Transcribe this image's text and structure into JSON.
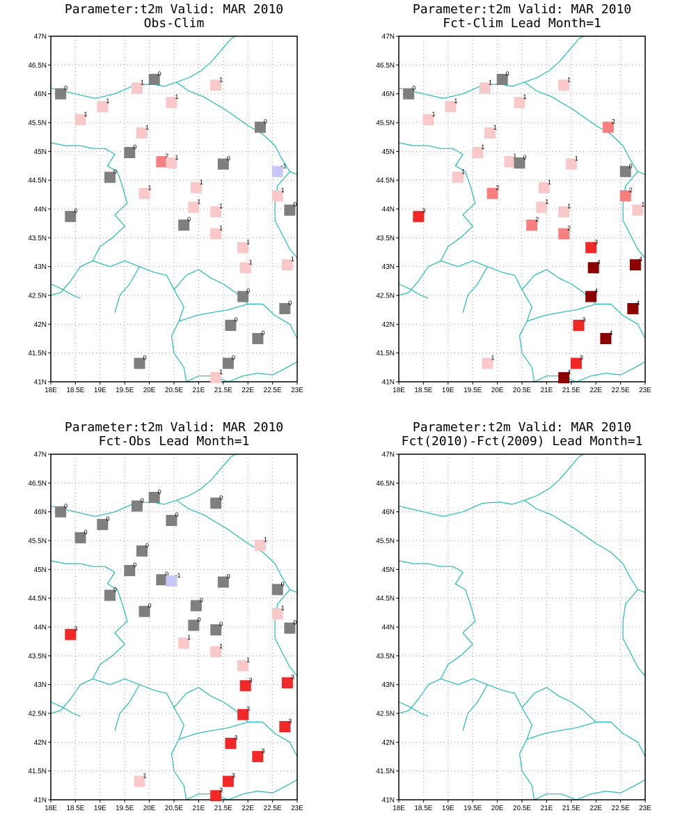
{
  "lon_labels": [
    "18E",
    "18.5E",
    "19E",
    "19.5E",
    "20E",
    "20.5E",
    "21E",
    "21.5E",
    "22E",
    "22.5E",
    "23E"
  ],
  "lat_labels": [
    "41N",
    "41.5N",
    "42N",
    "42.5N",
    "43N",
    "43.5N",
    "44N",
    "44.5N",
    "45N",
    "45.5N",
    "46N",
    "46.5N",
    "47N"
  ],
  "colors": {
    "-1": "#c8c8f8",
    "0": "#7f7f7f",
    "1": "#f9c9c9",
    "2": "#f68080",
    "3": "#f02828",
    "4": "#8c0000",
    "border": "#22bbbb",
    "grid": "#9a9a9a"
  },
  "panels": [
    {
      "title1": "Parameter:t2m Valid: MAR 2010",
      "title2": "Obs-Clim",
      "stations": [
        {
          "lon": 18.2,
          "lat": 46.0,
          "v": 0
        },
        {
          "lon": 20.1,
          "lat": 46.25,
          "v": 0
        },
        {
          "lon": 19.75,
          "lat": 46.1,
          "v": 1
        },
        {
          "lon": 21.35,
          "lat": 46.15,
          "v": 1
        },
        {
          "lon": 19.05,
          "lat": 45.78,
          "v": 1
        },
        {
          "lon": 20.45,
          "lat": 45.85,
          "v": 1
        },
        {
          "lon": 18.6,
          "lat": 45.55,
          "v": 1
        },
        {
          "lon": 19.85,
          "lat": 45.32,
          "v": 1
        },
        {
          "lon": 22.25,
          "lat": 45.42,
          "v": 0
        },
        {
          "lon": 19.6,
          "lat": 44.98,
          "v": 0
        },
        {
          "lon": 20.25,
          "lat": 44.82,
          "v": 2
        },
        {
          "lon": 20.45,
          "lat": 44.8,
          "v": 1
        },
        {
          "lon": 21.5,
          "lat": 44.78,
          "v": 0
        },
        {
          "lon": 22.6,
          "lat": 44.65,
          "v": -1
        },
        {
          "lon": 19.2,
          "lat": 44.55,
          "v": 0
        },
        {
          "lon": 19.9,
          "lat": 44.27,
          "v": 1
        },
        {
          "lon": 20.95,
          "lat": 44.37,
          "v": 1
        },
        {
          "lon": 22.6,
          "lat": 44.23,
          "v": 1
        },
        {
          "lon": 20.9,
          "lat": 44.03,
          "v": 1
        },
        {
          "lon": 21.35,
          "lat": 43.95,
          "v": 1
        },
        {
          "lon": 22.85,
          "lat": 43.98,
          "v": 0
        },
        {
          "lon": 18.4,
          "lat": 43.87,
          "v": 0
        },
        {
          "lon": 20.7,
          "lat": 43.72,
          "v": 0
        },
        {
          "lon": 21.35,
          "lat": 43.57,
          "v": 1
        },
        {
          "lon": 21.9,
          "lat": 43.33,
          "v": 1
        },
        {
          "lon": 21.95,
          "lat": 42.98,
          "v": 1
        },
        {
          "lon": 22.8,
          "lat": 43.03,
          "v": 1
        },
        {
          "lon": 21.9,
          "lat": 42.48,
          "v": 0
        },
        {
          "lon": 22.75,
          "lat": 42.27,
          "v": 0
        },
        {
          "lon": 21.65,
          "lat": 41.98,
          "v": 0
        },
        {
          "lon": 22.2,
          "lat": 41.75,
          "v": 0
        },
        {
          "lon": 19.8,
          "lat": 41.32,
          "v": 0
        },
        {
          "lon": 21.6,
          "lat": 41.32,
          "v": 0
        },
        {
          "lon": 21.35,
          "lat": 41.07,
          "v": 1
        }
      ]
    },
    {
      "title1": "Parameter:t2m Valid: MAR 2010",
      "title2": "Fct-Clim Lead Month=1",
      "stations": [
        {
          "lon": 18.2,
          "lat": 46.0,
          "v": 0
        },
        {
          "lon": 20.1,
          "lat": 46.25,
          "v": 0
        },
        {
          "lon": 19.75,
          "lat": 46.1,
          "v": 1
        },
        {
          "lon": 21.35,
          "lat": 46.15,
          "v": 1
        },
        {
          "lon": 19.05,
          "lat": 45.78,
          "v": 1
        },
        {
          "lon": 20.45,
          "lat": 45.85,
          "v": 1
        },
        {
          "lon": 18.6,
          "lat": 45.55,
          "v": 1
        },
        {
          "lon": 19.85,
          "lat": 45.32,
          "v": 1
        },
        {
          "lon": 22.25,
          "lat": 45.42,
          "v": 2
        },
        {
          "lon": 19.6,
          "lat": 44.98,
          "v": 1
        },
        {
          "lon": 20.25,
          "lat": 44.82,
          "v": 1
        },
        {
          "lon": 20.45,
          "lat": 44.8,
          "v": 0
        },
        {
          "lon": 21.5,
          "lat": 44.78,
          "v": 1
        },
        {
          "lon": 22.6,
          "lat": 44.65,
          "v": 0
        },
        {
          "lon": 19.2,
          "lat": 44.55,
          "v": 1
        },
        {
          "lon": 19.9,
          "lat": 44.27,
          "v": 2
        },
        {
          "lon": 20.95,
          "lat": 44.37,
          "v": 1
        },
        {
          "lon": 22.6,
          "lat": 44.23,
          "v": 2
        },
        {
          "lon": 20.9,
          "lat": 44.03,
          "v": 1
        },
        {
          "lon": 21.35,
          "lat": 43.95,
          "v": 1
        },
        {
          "lon": 22.85,
          "lat": 43.98,
          "v": 1
        },
        {
          "lon": 18.4,
          "lat": 43.87,
          "v": 3
        },
        {
          "lon": 20.7,
          "lat": 43.72,
          "v": 2
        },
        {
          "lon": 21.35,
          "lat": 43.57,
          "v": 2
        },
        {
          "lon": 21.9,
          "lat": 43.33,
          "v": 3
        },
        {
          "lon": 21.95,
          "lat": 42.98,
          "v": 4
        },
        {
          "lon": 22.8,
          "lat": 43.03,
          "v": 4
        },
        {
          "lon": 21.9,
          "lat": 42.48,
          "v": 4
        },
        {
          "lon": 22.75,
          "lat": 42.27,
          "v": 4
        },
        {
          "lon": 21.65,
          "lat": 41.98,
          "v": 3
        },
        {
          "lon": 22.2,
          "lat": 41.75,
          "v": 4
        },
        {
          "lon": 19.8,
          "lat": 41.32,
          "v": 1
        },
        {
          "lon": 21.6,
          "lat": 41.32,
          "v": 3
        },
        {
          "lon": 21.35,
          "lat": 41.07,
          "v": 4
        }
      ]
    },
    {
      "title1": "Parameter:t2m Valid: MAR 2010",
      "title2": "Fct-Obs Lead Month=1",
      "stations": [
        {
          "lon": 18.2,
          "lat": 46.0,
          "v": 0
        },
        {
          "lon": 20.1,
          "lat": 46.25,
          "v": 0
        },
        {
          "lon": 19.75,
          "lat": 46.1,
          "v": 0
        },
        {
          "lon": 21.35,
          "lat": 46.15,
          "v": 0
        },
        {
          "lon": 19.05,
          "lat": 45.78,
          "v": 0
        },
        {
          "lon": 20.45,
          "lat": 45.85,
          "v": 0
        },
        {
          "lon": 18.6,
          "lat": 45.55,
          "v": 0
        },
        {
          "lon": 19.85,
          "lat": 45.32,
          "v": 0
        },
        {
          "lon": 22.25,
          "lat": 45.42,
          "v": 1
        },
        {
          "lon": 19.6,
          "lat": 44.98,
          "v": 0
        },
        {
          "lon": 20.25,
          "lat": 44.82,
          "v": 0
        },
        {
          "lon": 20.45,
          "lat": 44.8,
          "v": -1
        },
        {
          "lon": 21.5,
          "lat": 44.78,
          "v": 0
        },
        {
          "lon": 22.6,
          "lat": 44.65,
          "v": 0
        },
        {
          "lon": 19.2,
          "lat": 44.55,
          "v": 0
        },
        {
          "lon": 19.9,
          "lat": 44.27,
          "v": 0
        },
        {
          "lon": 20.95,
          "lat": 44.37,
          "v": 0
        },
        {
          "lon": 22.6,
          "lat": 44.23,
          "v": 1
        },
        {
          "lon": 20.9,
          "lat": 44.03,
          "v": 0
        },
        {
          "lon": 21.35,
          "lat": 43.95,
          "v": 0
        },
        {
          "lon": 22.85,
          "lat": 43.98,
          "v": 0
        },
        {
          "lon": 18.4,
          "lat": 43.87,
          "v": 3
        },
        {
          "lon": 20.7,
          "lat": 43.72,
          "v": 1
        },
        {
          "lon": 21.35,
          "lat": 43.57,
          "v": 1
        },
        {
          "lon": 21.9,
          "lat": 43.33,
          "v": 1
        },
        {
          "lon": 21.95,
          "lat": 42.98,
          "v": 3
        },
        {
          "lon": 22.8,
          "lat": 43.03,
          "v": 3
        },
        {
          "lon": 21.9,
          "lat": 42.48,
          "v": 3
        },
        {
          "lon": 22.75,
          "lat": 42.27,
          "v": 3
        },
        {
          "lon": 21.65,
          "lat": 41.98,
          "v": 3
        },
        {
          "lon": 22.2,
          "lat": 41.75,
          "v": 3
        },
        {
          "lon": 19.8,
          "lat": 41.32,
          "v": 1
        },
        {
          "lon": 21.6,
          "lat": 41.32,
          "v": 3
        },
        {
          "lon": 21.35,
          "lat": 41.07,
          "v": 3
        }
      ]
    },
    {
      "title1": "Parameter:t2m Valid: MAR 2010",
      "title2": "Fct(2010)-Fct(2009) Lead Month=1",
      "stations": []
    }
  ]
}
